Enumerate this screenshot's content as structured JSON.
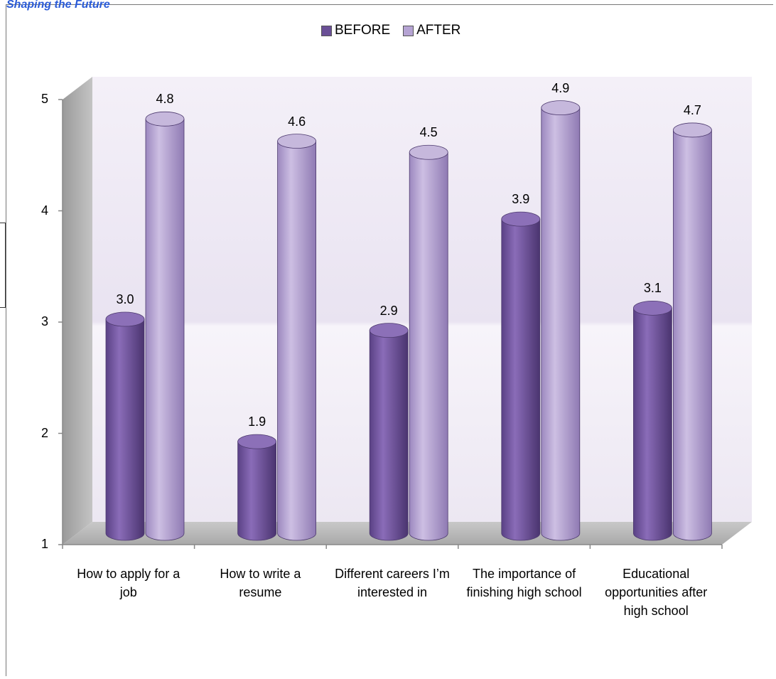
{
  "page": {
    "caption": "Shaping the Future"
  },
  "chart_data": {
    "type": "bar",
    "categories": [
      "How to apply for a job",
      "How to write a resume",
      "Different careers I’m interested in",
      "The importance of finishing high school",
      "Educational opportunities after high school"
    ],
    "series": [
      {
        "name": "BEFORE",
        "values": [
          3.0,
          1.9,
          2.9,
          3.9,
          3.1
        ],
        "labels": [
          "3.0",
          "1.9",
          "2.9",
          "3.9",
          "3.1"
        ],
        "color": "#7b5ea7"
      },
      {
        "name": "AFTER",
        "values": [
          4.8,
          4.6,
          4.5,
          4.9,
          4.7
        ],
        "labels": [
          "4.8",
          "4.6",
          "4.5",
          "4.9",
          "4.7"
        ],
        "color": "#b5a3d3"
      }
    ],
    "yticks": [
      "1",
      "2",
      "3",
      "4",
      "5"
    ],
    "ylim": [
      1,
      5
    ],
    "legend": "top-center",
    "style": "3d-cylinder",
    "grid": false
  }
}
